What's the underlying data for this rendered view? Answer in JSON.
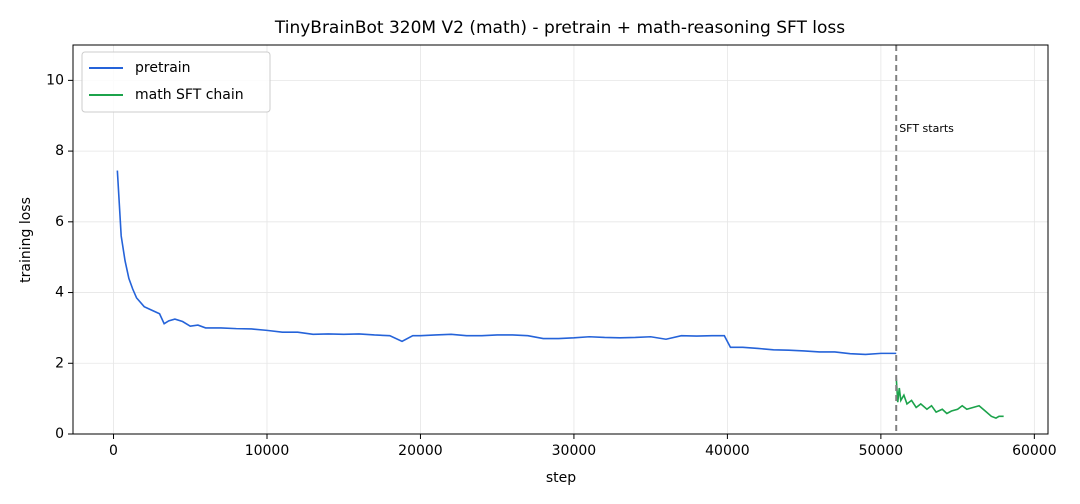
{
  "chart_data": {
    "type": "line",
    "title": "TinyBrainBot 320M V2 (math) - pretrain + math-reasoning SFT loss",
    "xlabel": "step",
    "ylabel": "training loss",
    "xlim": [
      -2640,
      60890
    ],
    "ylim": [
      0,
      11
    ],
    "xticks": [
      0,
      10000,
      20000,
      30000,
      40000,
      50000,
      60000
    ],
    "yticks": [
      0,
      2,
      4,
      6,
      8,
      10
    ],
    "grid": true,
    "legend": "upper left",
    "vline": {
      "x": 51000,
      "label": "SFT starts",
      "color": "#808080"
    },
    "series": [
      {
        "name": "pretrain",
        "color": "#2563d9",
        "x": [
          250,
          500,
          750,
          1000,
          1250,
          1500,
          2000,
          2500,
          3000,
          3300,
          3600,
          4000,
          4500,
          5000,
          5500,
          6000,
          7000,
          8000,
          9000,
          10000,
          11000,
          12000,
          13000,
          14000,
          15000,
          16000,
          17000,
          18000,
          18800,
          19500,
          20000,
          21000,
          22000,
          23000,
          24000,
          25000,
          26000,
          27000,
          28000,
          29000,
          30000,
          31000,
          32000,
          33000,
          34000,
          35000,
          36000,
          37000,
          38000,
          39000,
          39800,
          40200,
          41000,
          42000,
          43000,
          44000,
          45000,
          46000,
          47000,
          48000,
          49000,
          50000,
          51000
        ],
        "values": [
          7.45,
          5.6,
          4.9,
          4.4,
          4.1,
          3.85,
          3.6,
          3.5,
          3.4,
          3.12,
          3.2,
          3.25,
          3.18,
          3.05,
          3.08,
          3.0,
          3.0,
          2.98,
          2.97,
          2.93,
          2.88,
          2.88,
          2.82,
          2.83,
          2.82,
          2.83,
          2.8,
          2.78,
          2.62,
          2.78,
          2.78,
          2.8,
          2.82,
          2.78,
          2.78,
          2.8,
          2.8,
          2.78,
          2.7,
          2.7,
          2.72,
          2.75,
          2.73,
          2.72,
          2.73,
          2.75,
          2.68,
          2.78,
          2.77,
          2.78,
          2.78,
          2.45,
          2.45,
          2.42,
          2.38,
          2.37,
          2.35,
          2.32,
          2.32,
          2.27,
          2.25,
          2.28,
          2.28
        ]
      },
      {
        "name": "math SFT chain",
        "color": "#1ca34b",
        "x": [
          51000,
          51100,
          51200,
          51300,
          51500,
          51700,
          52000,
          52300,
          52600,
          53000,
          53300,
          53600,
          54000,
          54300,
          54600,
          55000,
          55300,
          55600,
          56000,
          56400,
          56800,
          57200,
          57500,
          57700,
          58000
        ],
        "values": [
          1.6,
          0.9,
          1.3,
          0.95,
          1.1,
          0.85,
          0.95,
          0.75,
          0.85,
          0.7,
          0.8,
          0.62,
          0.7,
          0.58,
          0.65,
          0.7,
          0.8,
          0.7,
          0.75,
          0.8,
          0.65,
          0.5,
          0.45,
          0.5,
          0.5
        ]
      }
    ]
  }
}
